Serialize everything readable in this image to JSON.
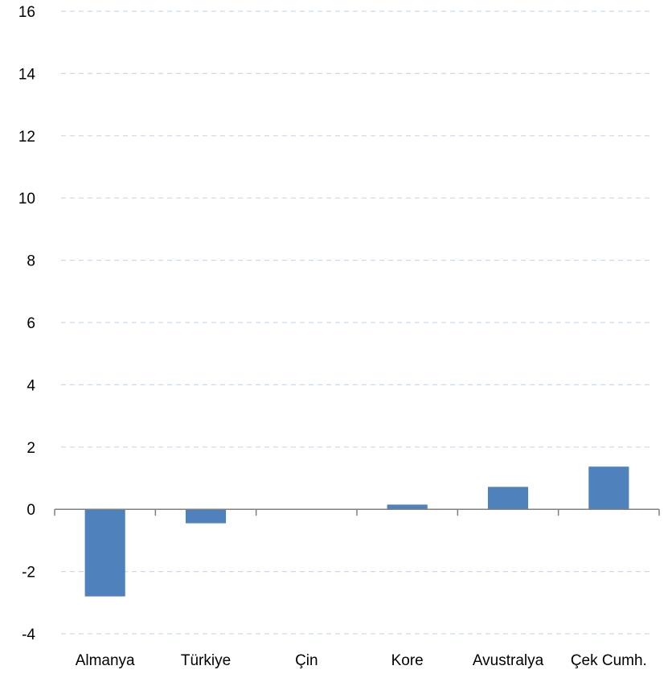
{
  "chart_data": {
    "type": "bar",
    "title": "",
    "xlabel": "",
    "ylabel": "",
    "categories": [
      "Almanya",
      "Türkiye",
      "Çin",
      "Kore",
      "Avustralya",
      "Çek Cumh."
    ],
    "values": [
      -2.8,
      -0.45,
      0,
      0.15,
      0.72,
      1.37
    ],
    "ylim": [
      -4,
      16
    ],
    "yticks": [
      -4,
      -2,
      0,
      2,
      4,
      6,
      8,
      10,
      12,
      14,
      16
    ],
    "grid": true,
    "grid_style": "dashed",
    "legend": "none",
    "bar_color": "#4f81bd",
    "grid_color": "#c6d9f1",
    "axis_color": "#808080"
  }
}
